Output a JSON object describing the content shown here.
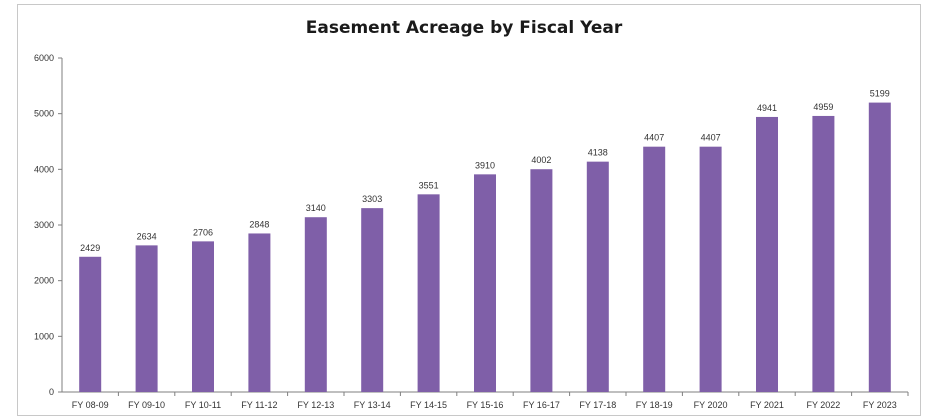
{
  "chart_data": {
    "type": "bar",
    "title": "Easement Acreage by Fiscal Year",
    "categories": [
      "FY 08-09",
      "FY 09-10",
      "FY 10-11",
      "FY 11-12",
      "FY 12-13",
      "FY 13-14",
      "FY 14-15",
      "FY 15-16",
      "FY 16-17",
      "FY 17-18",
      "FY 18-19",
      "FY 2020",
      "FY 2021",
      "FY 2022",
      "FY 2023"
    ],
    "values": [
      2429,
      2634,
      2706,
      2848,
      3140,
      3303,
      3551,
      3910,
      4002,
      4138,
      4407,
      4407,
      4941,
      4959,
      5199
    ],
    "ylim": [
      0,
      6000
    ],
    "yticks": [
      0,
      1000,
      2000,
      3000,
      4000,
      5000,
      6000
    ],
    "xlabel": "",
    "ylabel": "",
    "grid": false,
    "legend": "none",
    "bar_color": "#7f5fa8"
  }
}
